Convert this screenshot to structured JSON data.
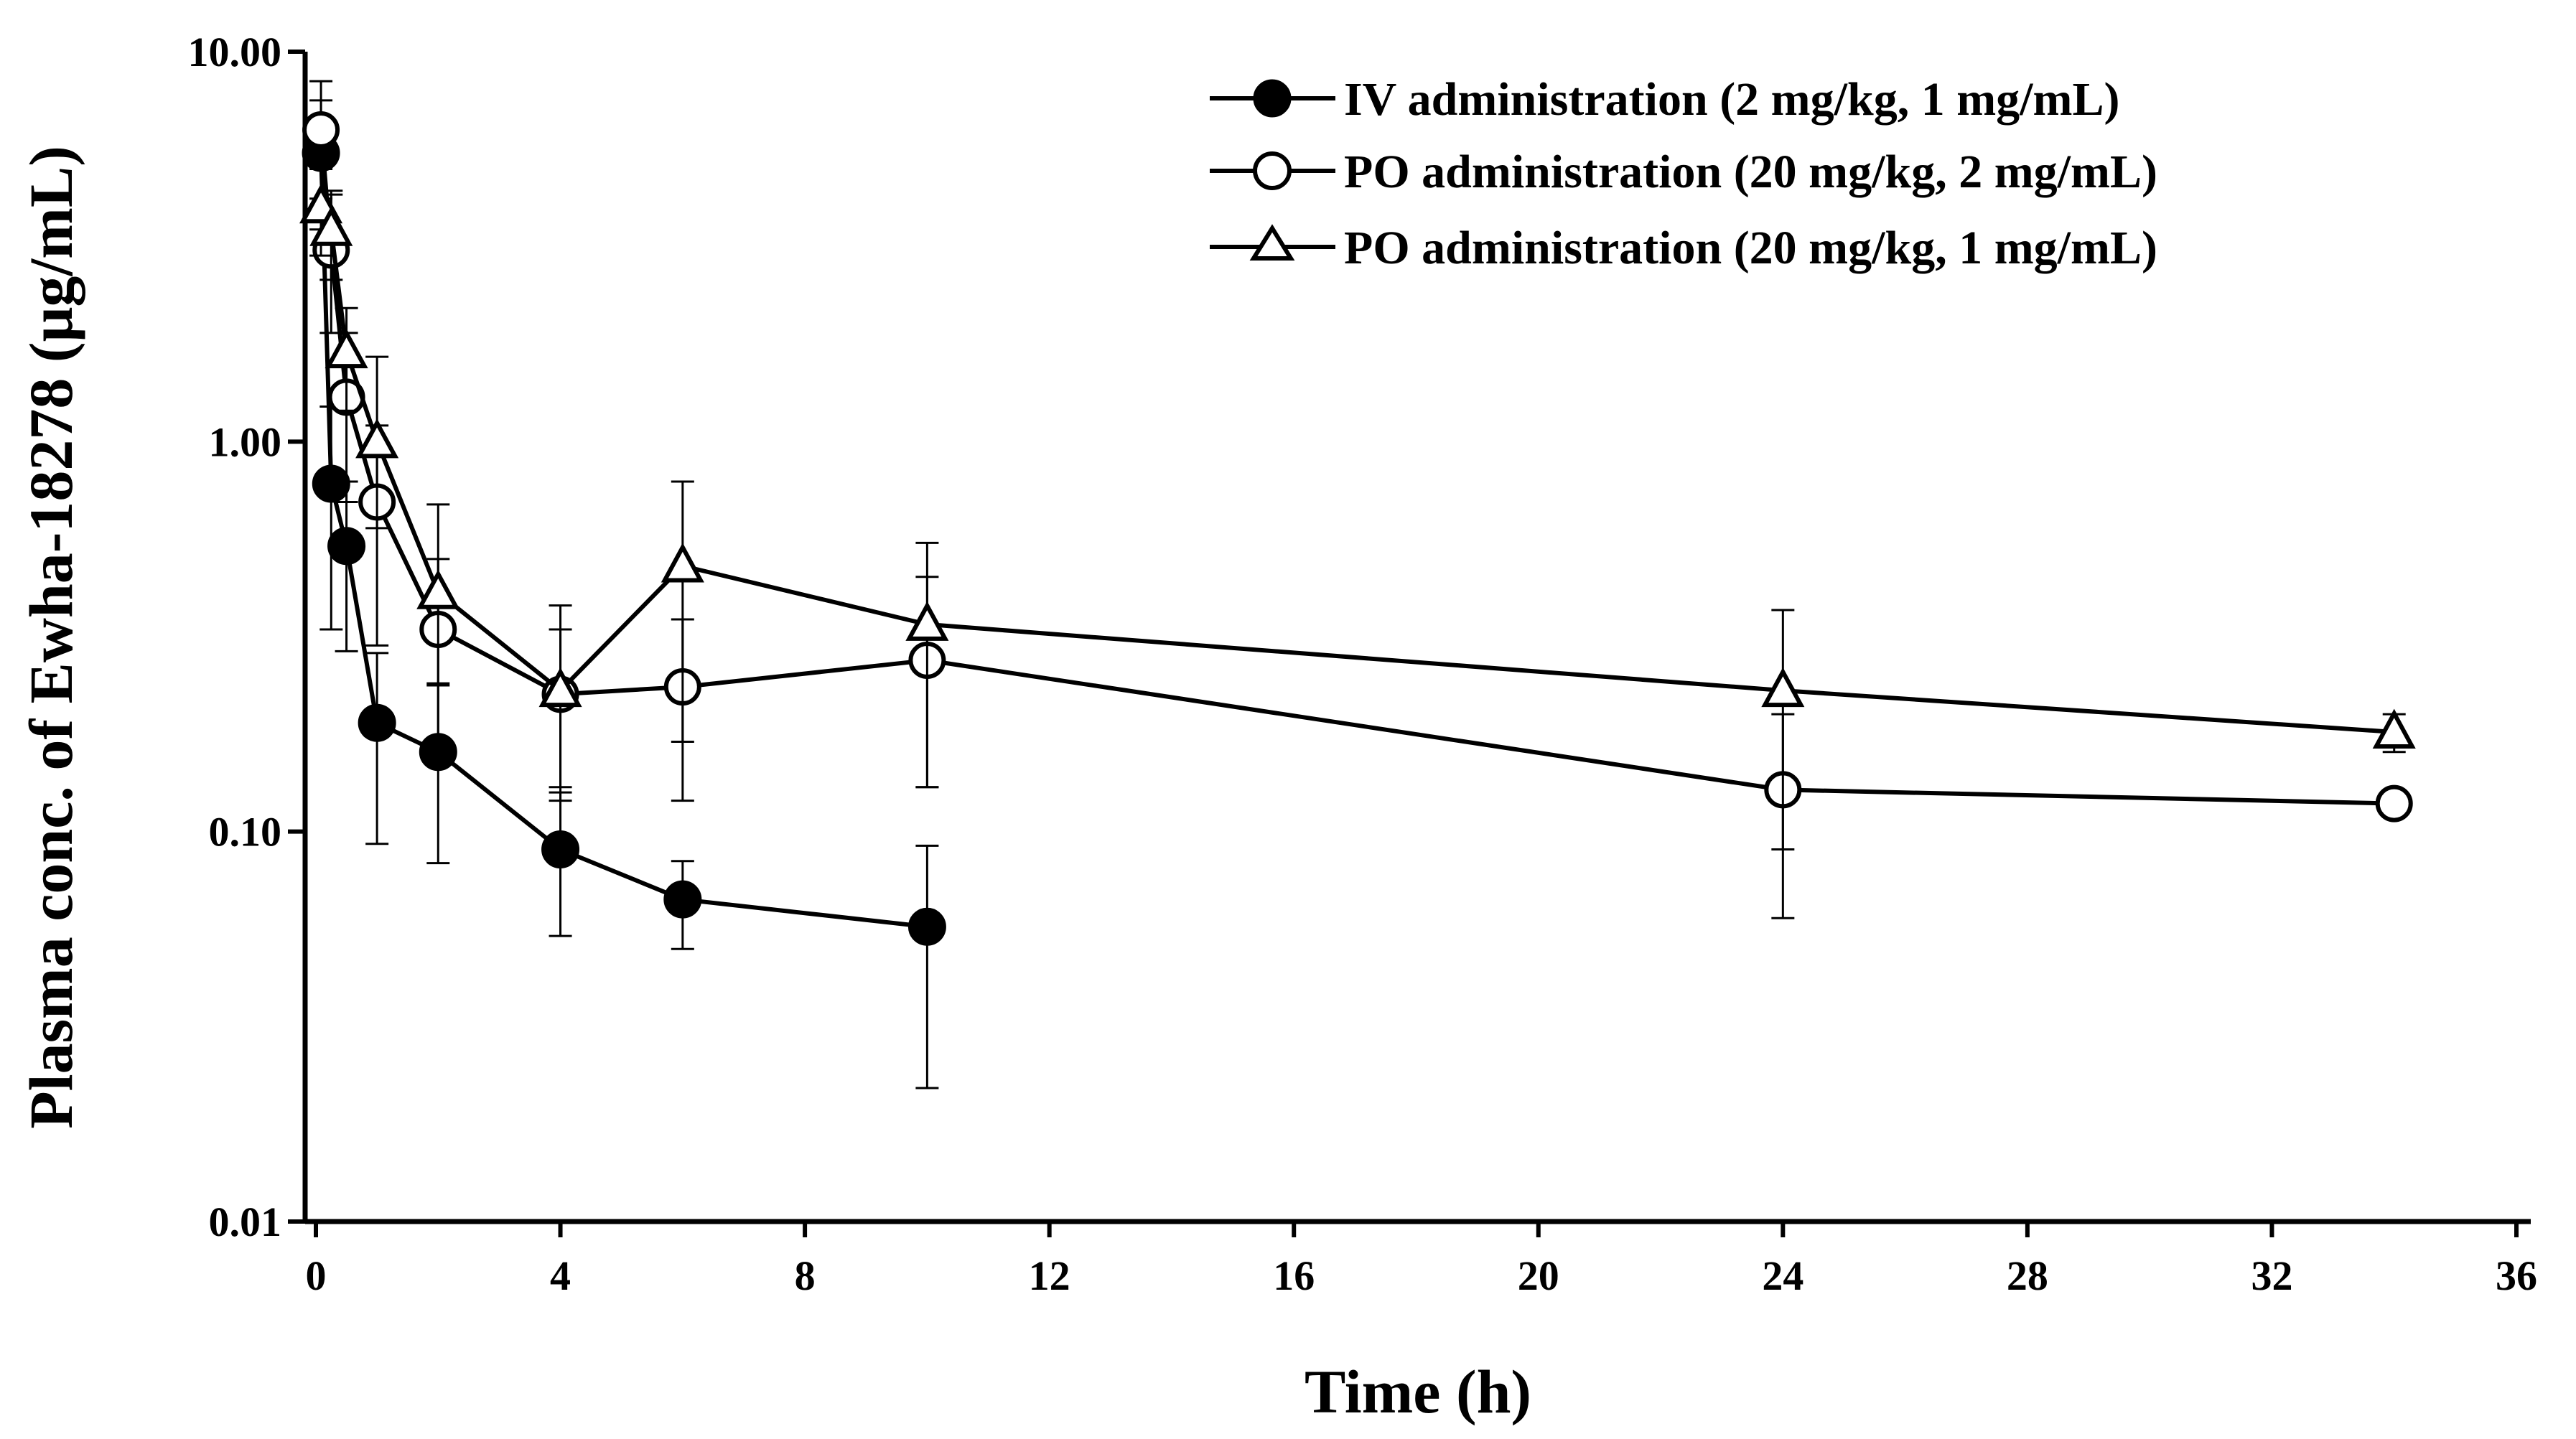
{
  "chart_data": {
    "type": "line",
    "yscale": "log",
    "xlabel": "Time (h)",
    "ylabel": "Plasma conc. of Ewha-18278 (μg/mL)",
    "xlim": [
      0,
      36
    ],
    "ylim": [
      0.01,
      10
    ],
    "xticks": [
      0,
      4,
      8,
      12,
      16,
      20,
      24,
      28,
      32,
      36
    ],
    "xtick_labels": [
      "0",
      "4",
      "8",
      "12",
      "16",
      "20",
      "24",
      "28",
      "32",
      "36"
    ],
    "yticks": [
      0.01,
      0.1,
      1,
      10
    ],
    "ytick_labels": [
      "0.01",
      "0.10",
      "1.00",
      "10.00"
    ],
    "legend_position": "top-right",
    "series": [
      {
        "name": "IV administration (2 mg/kg, 1 mg/mL)",
        "marker": "filled-circle",
        "x": [
          0.083,
          0.25,
          0.5,
          1,
          2,
          4,
          6,
          10
        ],
        "y": [
          5.5,
          0.78,
          0.54,
          0.19,
          0.16,
          0.09,
          0.067,
          0.057
        ],
        "err_low": [
          3.5,
          0.33,
          0.29,
          0.093,
          0.083,
          0.054,
          0.05,
          0.022
        ],
        "err_high": [
          7.5,
          1.23,
          0.79,
          0.287,
          0.237,
          0.126,
          0.084,
          0.092
        ]
      },
      {
        "name": "PO administration (20 mg/kg, 2 mg/mL)",
        "marker": "open-circle",
        "x": [
          0.083,
          0.25,
          0.5,
          1,
          2,
          4,
          6,
          10,
          24,
          34
        ],
        "y": [
          6.3,
          3.1,
          1.3,
          0.7,
          0.33,
          0.225,
          0.235,
          0.275,
          0.128,
          0.118
        ],
        "err_low": [
          4.2,
          1.9,
          0.7,
          0.3,
          0.17,
          0.12,
          0.12,
          0.13,
          0.06,
          0.118
        ],
        "err_high": [
          8.4,
          4.3,
          1.9,
          1.1,
          0.5,
          0.33,
          0.35,
          0.45,
          0.2,
          0.118
        ]
      },
      {
        "name": "PO administration (20 mg/kg, 1 mg/mL)",
        "marker": "open-triangle",
        "x": [
          0.083,
          0.25,
          0.5,
          1,
          2,
          4,
          6,
          10,
          24,
          34
        ],
        "y": [
          4.0,
          3.5,
          1.7,
          1.0,
          0.41,
          0.23,
          0.48,
          0.34,
          0.23,
          0.18
        ],
        "err_low": [
          3.0,
          2.6,
          1.2,
          0.6,
          0.24,
          0.13,
          0.17,
          0.13,
          0.09,
          0.16
        ],
        "err_high": [
          5.0,
          4.4,
          2.2,
          1.65,
          0.69,
          0.38,
          0.79,
          0.55,
          0.37,
          0.2
        ]
      }
    ]
  }
}
